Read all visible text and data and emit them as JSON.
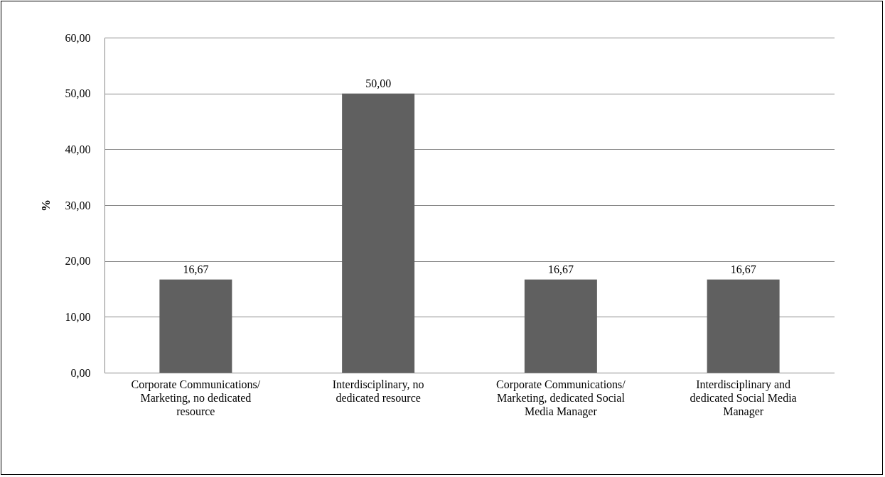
{
  "chart_data": {
    "type": "bar",
    "ylabel": "%",
    "categories": [
      "Corporate Communications/ Marketing, no dedicated resource",
      "Interdisciplinary, no dedicated resource",
      "Corporate Communications/ Marketing, dedicated Social Media Manager",
      "Interdisciplinary and dedicated Social Media Manager"
    ],
    "values": [
      16.67,
      50,
      16.67,
      16.67
    ],
    "value_labels": [
      "16,67",
      "50,00",
      "16,67",
      "16,67"
    ],
    "color": "#606060",
    "ylim": [
      0,
      60
    ],
    "yticks": [
      {
        "value": 0,
        "label": "0,00"
      },
      {
        "value": 10,
        "label": "10,00"
      },
      {
        "value": 20,
        "label": "20,00"
      },
      {
        "value": 30,
        "label": "30,00"
      },
      {
        "value": 40,
        "label": "40,00"
      },
      {
        "value": 50,
        "label": "50,00"
      },
      {
        "value": 60,
        "label": "60,00"
      }
    ],
    "grid": "y"
  }
}
